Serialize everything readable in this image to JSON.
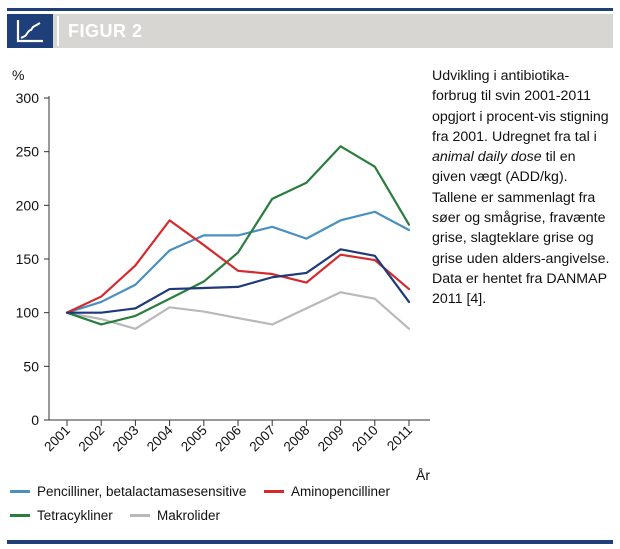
{
  "header": {
    "figure_label": "FIGUR 2",
    "icon": "line-chart-icon",
    "band_color": "#d8d6d2",
    "accent_color": "#1f3f7a"
  },
  "caption": {
    "part1": "Udvikling i antibiotika-forbrug til svin 2001-2011 opgjort i procent-vis stigning fra 2001. Udregnet fra tal i ",
    "italic": "animal daily dose",
    "part2": " til en given vægt (ADD/kg). Tallene er sammenlagt fra søer og smågrise, fravænte grise, slagteklare grise og grise uden alders-angivelse. Data er hentet fra DANMAP 2011 [4]."
  },
  "chart_data": {
    "type": "line",
    "y_unit_label": "%",
    "xlabel": "År",
    "ylim": [
      0,
      300
    ],
    "yticks": [
      "0",
      "50",
      "100",
      "150",
      "200",
      "250",
      "300"
    ],
    "categories": [
      "2001",
      "2002",
      "2003",
      "2004",
      "2005",
      "2006",
      "2007",
      "2008",
      "2009",
      "2010",
      "2011"
    ],
    "grid": false,
    "legend_position": "bottom",
    "series": [
      {
        "name": "Pencilliner, betalactamasesensitive",
        "color": "#4a90bf",
        "values": [
          100,
          110,
          126,
          158,
          172,
          172,
          180,
          169,
          186,
          194,
          177
        ]
      },
      {
        "name": "Aminopencilliner",
        "color": "#d42a2e",
        "values": [
          100,
          115,
          144,
          186,
          163,
          139,
          136,
          128,
          154,
          149,
          122
        ]
      },
      {
        "name": "Tetracykliner",
        "color": "#2b7d3e",
        "values": [
          100,
          89,
          97,
          113,
          129,
          156,
          206,
          221,
          255,
          236,
          182
        ]
      },
      {
        "name": "Makrolider",
        "color": "#b9b9b9",
        "values": [
          100,
          94,
          85,
          105,
          101,
          95,
          89,
          104,
          119,
          113,
          85
        ]
      },
      {
        "name": "",
        "color": "#1f3a7a",
        "values": [
          100,
          100,
          104,
          122,
          123,
          124,
          133,
          137,
          159,
          153,
          110
        ]
      }
    ]
  }
}
